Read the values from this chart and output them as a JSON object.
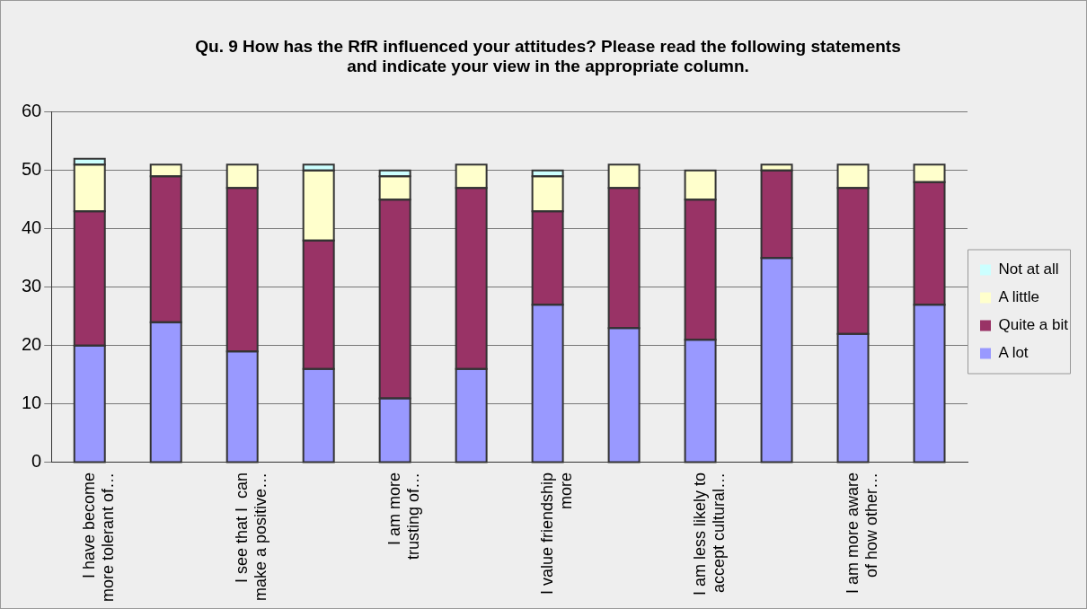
{
  "chart_data": {
    "type": "bar",
    "stacked": true,
    "title": "Qu. 9 How has the RfR influenced your attitudes? Please read the following statements and indicate your view in the appropriate column.",
    "categories": [
      "I have become\nmore tolerant of…",
      null,
      "I see that I  can\nmake a positive…",
      null,
      "I am more\ntrusting of…",
      null,
      "I value friendship\nmore",
      null,
      "I am less likely to\naccept cultural…",
      null,
      "I am more aware\nof how other…",
      null
    ],
    "series": [
      {
        "name": "A lot",
        "color": "#9999ff",
        "values": [
          20,
          24,
          19,
          16,
          11,
          16,
          27,
          23,
          21,
          35,
          22,
          27
        ]
      },
      {
        "name": "Quite a bit",
        "color": "#993366",
        "values": [
          23,
          25,
          28,
          22,
          34,
          31,
          16,
          24,
          24,
          15,
          25,
          21
        ]
      },
      {
        "name": "A little",
        "color": "#ffffcc",
        "values": [
          8,
          2,
          4,
          12,
          4,
          4,
          6,
          4,
          5,
          1,
          4,
          3
        ]
      },
      {
        "name": "Not at all",
        "color": "#ccffff",
        "values": [
          1,
          0,
          0,
          1,
          1,
          0,
          1,
          0,
          0,
          0,
          0,
          0
        ]
      }
    ],
    "ylim": [
      0,
      60
    ],
    "yticks": [
      0,
      10,
      20,
      30,
      40,
      50,
      60
    ],
    "grid": "y",
    "legend": "right"
  }
}
